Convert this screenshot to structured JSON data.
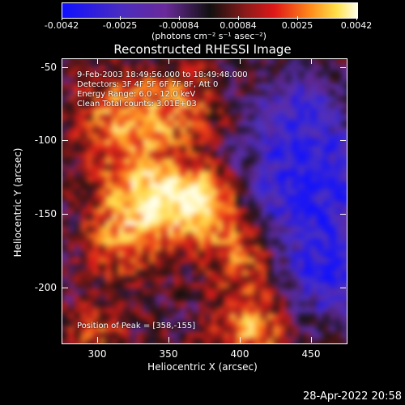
{
  "colorbar": {
    "labels": [
      "-0.0042",
      "-0.0025",
      "-0.00084",
      "0.00084",
      "0.0025",
      "0.0042"
    ],
    "units": "(photons cm⁻² s⁻¹ asec⁻²)"
  },
  "title": "Reconstructed RHESSI Image",
  "annotations": {
    "time": "9-Feb-2003 18:49:56.000 to 18:49:48.000",
    "detectors": "Detectors: 3F 4F 5F 6F 7F 8F, Att 0",
    "energy": "Energy Range: 6.0 - 12.0 keV",
    "clean": "Clean     Total counts: 3.01E+03",
    "peak": "Position of Peak = [358,-155]"
  },
  "axes": {
    "xlabel": "Heliocentric X (arcsec)",
    "ylabel": "Heliocentric Y (arcsec)",
    "xticks": [
      "300",
      "350",
      "400",
      "450"
    ],
    "yticks": [
      "-50",
      "-100",
      "-150",
      "-200"
    ]
  },
  "chart_data": {
    "type": "heatmap",
    "title": "Reconstructed RHESSI Image",
    "xlabel": "Heliocentric X (arcsec)",
    "ylabel": "Heliocentric Y (arcsec)",
    "xlim": [
      276,
      470
    ],
    "ylim": [
      -240,
      -45
    ],
    "zlim": [
      -0.0042,
      0.0042
    ],
    "peak": [
      358,
      -155
    ]
  },
  "timestamp": "28-Apr-2022 20:58"
}
